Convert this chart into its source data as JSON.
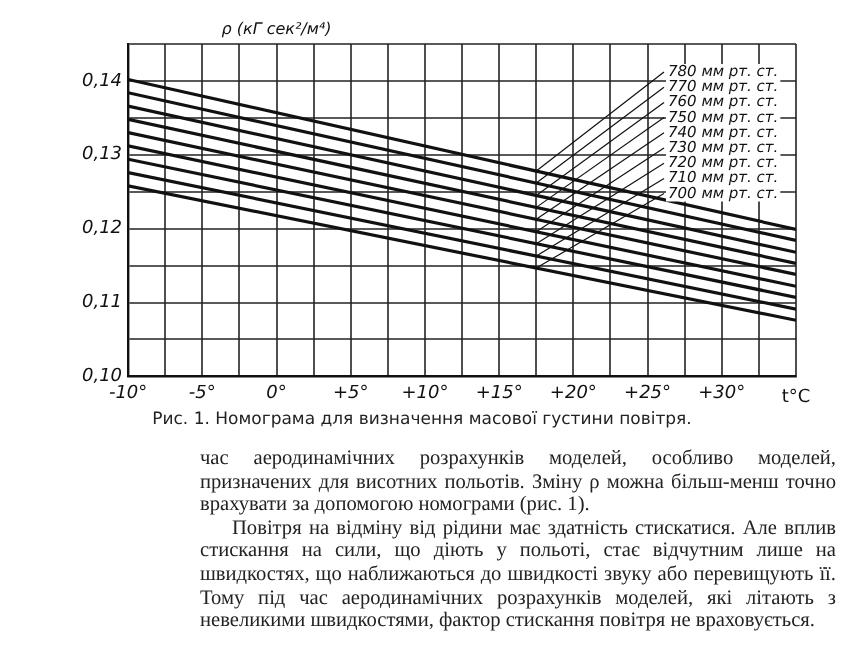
{
  "chart_data": {
    "type": "line",
    "title": "Рис. 1. Номограма для визначення масової густини повітря.",
    "ylabel": "ρ (кГ сек²/м⁴)",
    "xlabel": "t°C",
    "x": [
      -10,
      35
    ],
    "series": [
      {
        "name": "780 мм рт. ст.",
        "color": "#111111",
        "values": [
          0.1402,
          0.1199
        ]
      },
      {
        "name": "770 мм рт. ст.",
        "color": "#111111",
        "values": [
          0.1384,
          0.1184
        ]
      },
      {
        "name": "760 мм рт. ст.",
        "color": "#111111",
        "values": [
          0.1366,
          0.1168
        ]
      },
      {
        "name": "750 мм рт. ст.",
        "color": "#111111",
        "values": [
          0.1348,
          0.1153
        ]
      },
      {
        "name": "740 мм рт. ст.",
        "color": "#111111",
        "values": [
          0.133,
          0.1138
        ]
      },
      {
        "name": "730 мм рт. ст.",
        "color": "#111111",
        "values": [
          0.1312,
          0.1122
        ]
      },
      {
        "name": "720 мм рт. ст.",
        "color": "#111111",
        "values": [
          0.1294,
          0.1107
        ]
      },
      {
        "name": "710 мм рт. ст.",
        "color": "#111111",
        "values": [
          0.1276,
          0.1091
        ]
      },
      {
        "name": "700 мм рт. ст.",
        "color": "#111111",
        "values": [
          0.1258,
          0.1076
        ]
      }
    ],
    "xlim": [
      -10,
      35
    ],
    "xticks": [
      {
        "value": -10,
        "label": "-10°"
      },
      {
        "value": -7.5,
        "label": null
      },
      {
        "value": -5,
        "label": "-5°"
      },
      {
        "value": -2.5,
        "label": null
      },
      {
        "value": 0,
        "label": "0°"
      },
      {
        "value": 2.5,
        "label": null
      },
      {
        "value": 5,
        "label": "+5°"
      },
      {
        "value": 7.5,
        "label": null
      },
      {
        "value": 10,
        "label": "+10°"
      },
      {
        "value": 12.5,
        "label": null
      },
      {
        "value": 15,
        "label": "+15°"
      },
      {
        "value": 17.5,
        "label": null
      },
      {
        "value": 20,
        "label": "+20°"
      },
      {
        "value": 22.5,
        "label": null
      },
      {
        "value": 25,
        "label": "+25°"
      },
      {
        "value": 27.5,
        "label": null
      },
      {
        "value": 30,
        "label": "+30°"
      },
      {
        "value": 32.5,
        "label": null
      },
      {
        "value": 35,
        "label": null
      }
    ],
    "ylim": [
      0.1,
      0.145
    ],
    "yticks": [
      {
        "value": 0.1,
        "label": "0,10"
      },
      {
        "value": 0.105,
        "label": null
      },
      {
        "value": 0.11,
        "label": "0,11"
      },
      {
        "value": 0.115,
        "label": null
      },
      {
        "value": 0.12,
        "label": "0,12"
      },
      {
        "value": 0.125,
        "label": null
      },
      {
        "value": 0.13,
        "label": "0,13"
      },
      {
        "value": 0.135,
        "label": null
      },
      {
        "value": 0.14,
        "label": "0,14"
      },
      {
        "value": 0.145,
        "label": null
      }
    ],
    "grid": true,
    "marker": "none",
    "line_style": "solid",
    "annotations": [
      "час аеродинамічних розрахунків моделей, особливо моделей, призначених для висотних польотів. Зміну ρ можна більш-менш точно врахувати за допомогою номограми (рис. 1).",
      "Повітря на відміну від рідини має здатність стискатися. Але вплив стискання на сили, що діють у польоті, стає відчутним лише на швидкостях, що наближаються до швидкості звуку або перевищують її. Тому під час аеродинамічних розрахунків моделей, які літають з невеликими швидкостями, фактор стискання повітря не враховується."
    ]
  }
}
